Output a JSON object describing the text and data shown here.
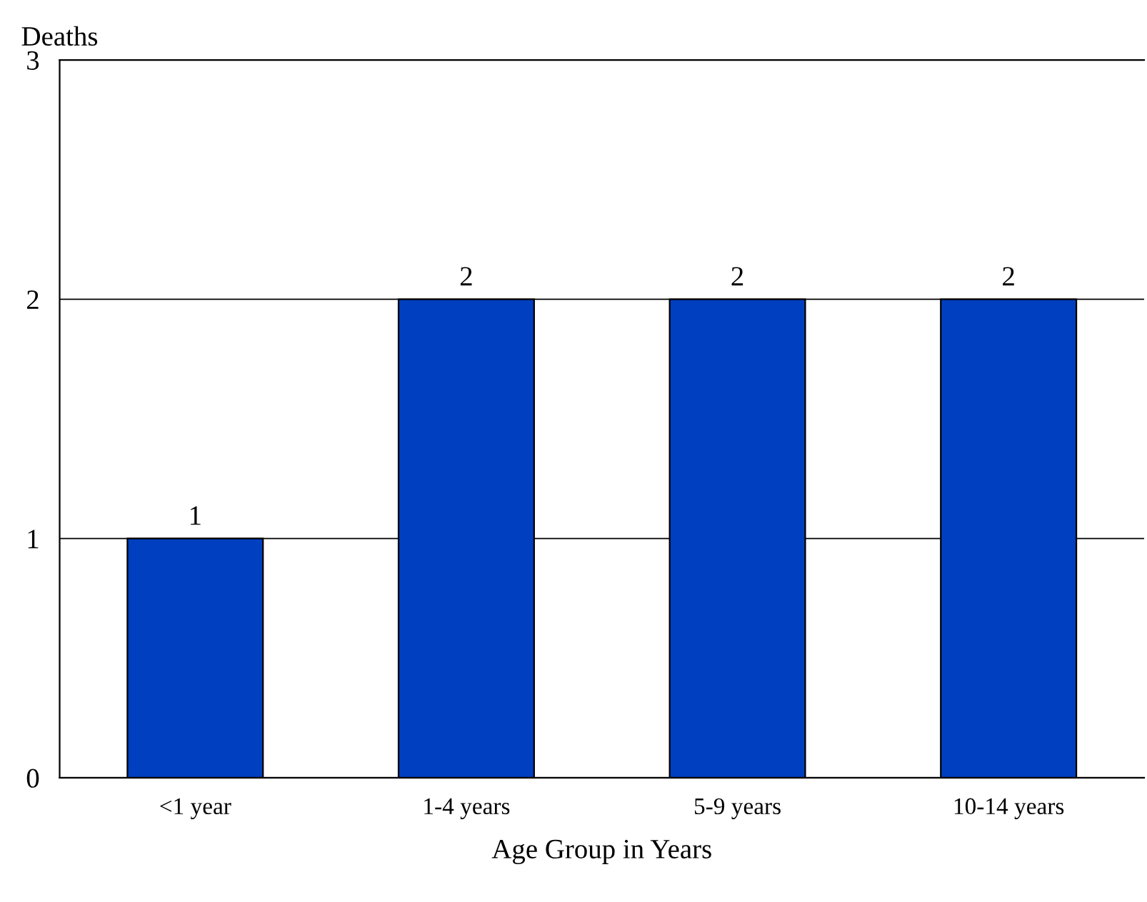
{
  "chart_data": {
    "type": "bar",
    "ylabel": "Deaths",
    "xlabel": "Age Group in Years",
    "categories": [
      "<1 year",
      "1-4 years",
      "5-9 years",
      "10-14 years"
    ],
    "values": [
      1,
      2,
      2,
      2
    ],
    "color": "#0040c0",
    "ylim": [
      0,
      3
    ],
    "yticks": [
      0,
      1,
      2,
      3
    ],
    "grid": "y",
    "data_labels": true
  }
}
